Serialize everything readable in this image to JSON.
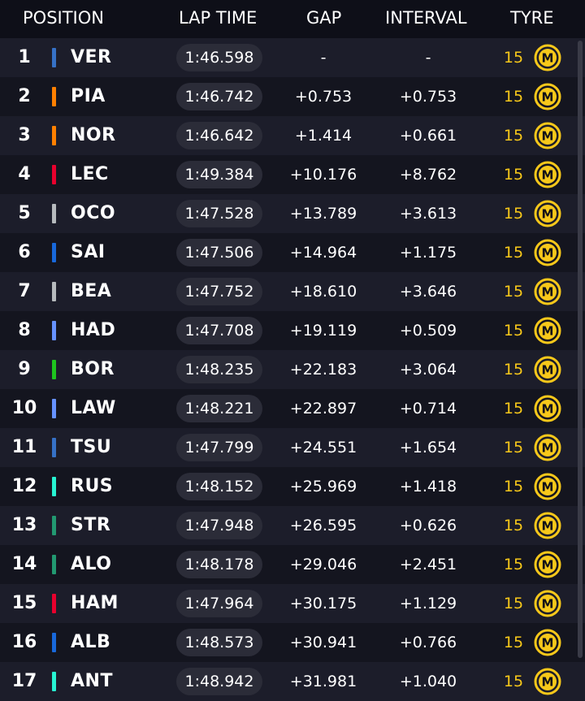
{
  "header": {
    "position": "POSITION",
    "lap_time": "LAP TIME",
    "gap": "GAP",
    "interval": "INTERVAL",
    "tyre": "TYRE"
  },
  "colors": {
    "accent_yellow": "#f7c81a",
    "background": "#0e0f18"
  },
  "rows": [
    {
      "pos": "1",
      "driver": "VER",
      "lap": "1:46.598",
      "gap": "-",
      "interval": "-",
      "laps": "15",
      "tyre": "M",
      "team_color": "#3671c6",
      "tyre_icon": "medium-tyre-icon"
    },
    {
      "pos": "2",
      "driver": "PIA",
      "lap": "1:46.742",
      "gap": "+0.753",
      "interval": "+0.753",
      "laps": "15",
      "tyre": "M",
      "team_color": "#ff8000",
      "tyre_icon": "medium-tyre-icon"
    },
    {
      "pos": "3",
      "driver": "NOR",
      "lap": "1:46.642",
      "gap": "+1.414",
      "interval": "+0.661",
      "laps": "15",
      "tyre": "M",
      "team_color": "#ff8000",
      "tyre_icon": "medium-tyre-icon"
    },
    {
      "pos": "4",
      "driver": "LEC",
      "lap": "1:49.384",
      "gap": "+10.176",
      "interval": "+8.762",
      "laps": "15",
      "tyre": "M",
      "team_color": "#e8002d",
      "tyre_icon": "medium-tyre-icon"
    },
    {
      "pos": "5",
      "driver": "OCO",
      "lap": "1:47.528",
      "gap": "+13.789",
      "interval": "+3.613",
      "laps": "15",
      "tyre": "M",
      "team_color": "#b6babd",
      "tyre_icon": "medium-tyre-icon"
    },
    {
      "pos": "6",
      "driver": "SAI",
      "lap": "1:47.506",
      "gap": "+14.964",
      "interval": "+1.175",
      "laps": "15",
      "tyre": "M",
      "team_color": "#1868db",
      "tyre_icon": "medium-tyre-icon"
    },
    {
      "pos": "7",
      "driver": "BEA",
      "lap": "1:47.752",
      "gap": "+18.610",
      "interval": "+3.646",
      "laps": "15",
      "tyre": "M",
      "team_color": "#b6babd",
      "tyre_icon": "medium-tyre-icon"
    },
    {
      "pos": "8",
      "driver": "HAD",
      "lap": "1:47.708",
      "gap": "+19.119",
      "interval": "+0.509",
      "laps": "15",
      "tyre": "M",
      "team_color": "#6692ff",
      "tyre_icon": "medium-tyre-icon"
    },
    {
      "pos": "9",
      "driver": "BOR",
      "lap": "1:48.235",
      "gap": "+22.183",
      "interval": "+3.064",
      "laps": "15",
      "tyre": "M",
      "team_color": "#1ec41e",
      "tyre_icon": "medium-tyre-icon"
    },
    {
      "pos": "10",
      "driver": "LAW",
      "lap": "1:48.221",
      "gap": "+22.897",
      "interval": "+0.714",
      "laps": "15",
      "tyre": "M",
      "team_color": "#6692ff",
      "tyre_icon": "medium-tyre-icon"
    },
    {
      "pos": "11",
      "driver": "TSU",
      "lap": "1:47.799",
      "gap": "+24.551",
      "interval": "+1.654",
      "laps": "15",
      "tyre": "M",
      "team_color": "#3671c6",
      "tyre_icon": "medium-tyre-icon"
    },
    {
      "pos": "12",
      "driver": "RUS",
      "lap": "1:48.152",
      "gap": "+25.969",
      "interval": "+1.418",
      "laps": "15",
      "tyre": "M",
      "team_color": "#27f4d2",
      "tyre_icon": "medium-tyre-icon"
    },
    {
      "pos": "13",
      "driver": "STR",
      "lap": "1:47.948",
      "gap": "+26.595",
      "interval": "+0.626",
      "laps": "15",
      "tyre": "M",
      "team_color": "#229971",
      "tyre_icon": "medium-tyre-icon"
    },
    {
      "pos": "14",
      "driver": "ALO",
      "lap": "1:48.178",
      "gap": "+29.046",
      "interval": "+2.451",
      "laps": "15",
      "tyre": "M",
      "team_color": "#229971",
      "tyre_icon": "medium-tyre-icon"
    },
    {
      "pos": "15",
      "driver": "HAM",
      "lap": "1:47.964",
      "gap": "+30.175",
      "interval": "+1.129",
      "laps": "15",
      "tyre": "M",
      "team_color": "#e8002d",
      "tyre_icon": "medium-tyre-icon"
    },
    {
      "pos": "16",
      "driver": "ALB",
      "lap": "1:48.573",
      "gap": "+30.941",
      "interval": "+0.766",
      "laps": "15",
      "tyre": "M",
      "team_color": "#1868db",
      "tyre_icon": "medium-tyre-icon"
    },
    {
      "pos": "17",
      "driver": "ANT",
      "lap": "1:48.942",
      "gap": "+31.981",
      "interval": "+1.040",
      "laps": "15",
      "tyre": "M",
      "team_color": "#27f4d2",
      "tyre_icon": "medium-tyre-icon"
    }
  ]
}
